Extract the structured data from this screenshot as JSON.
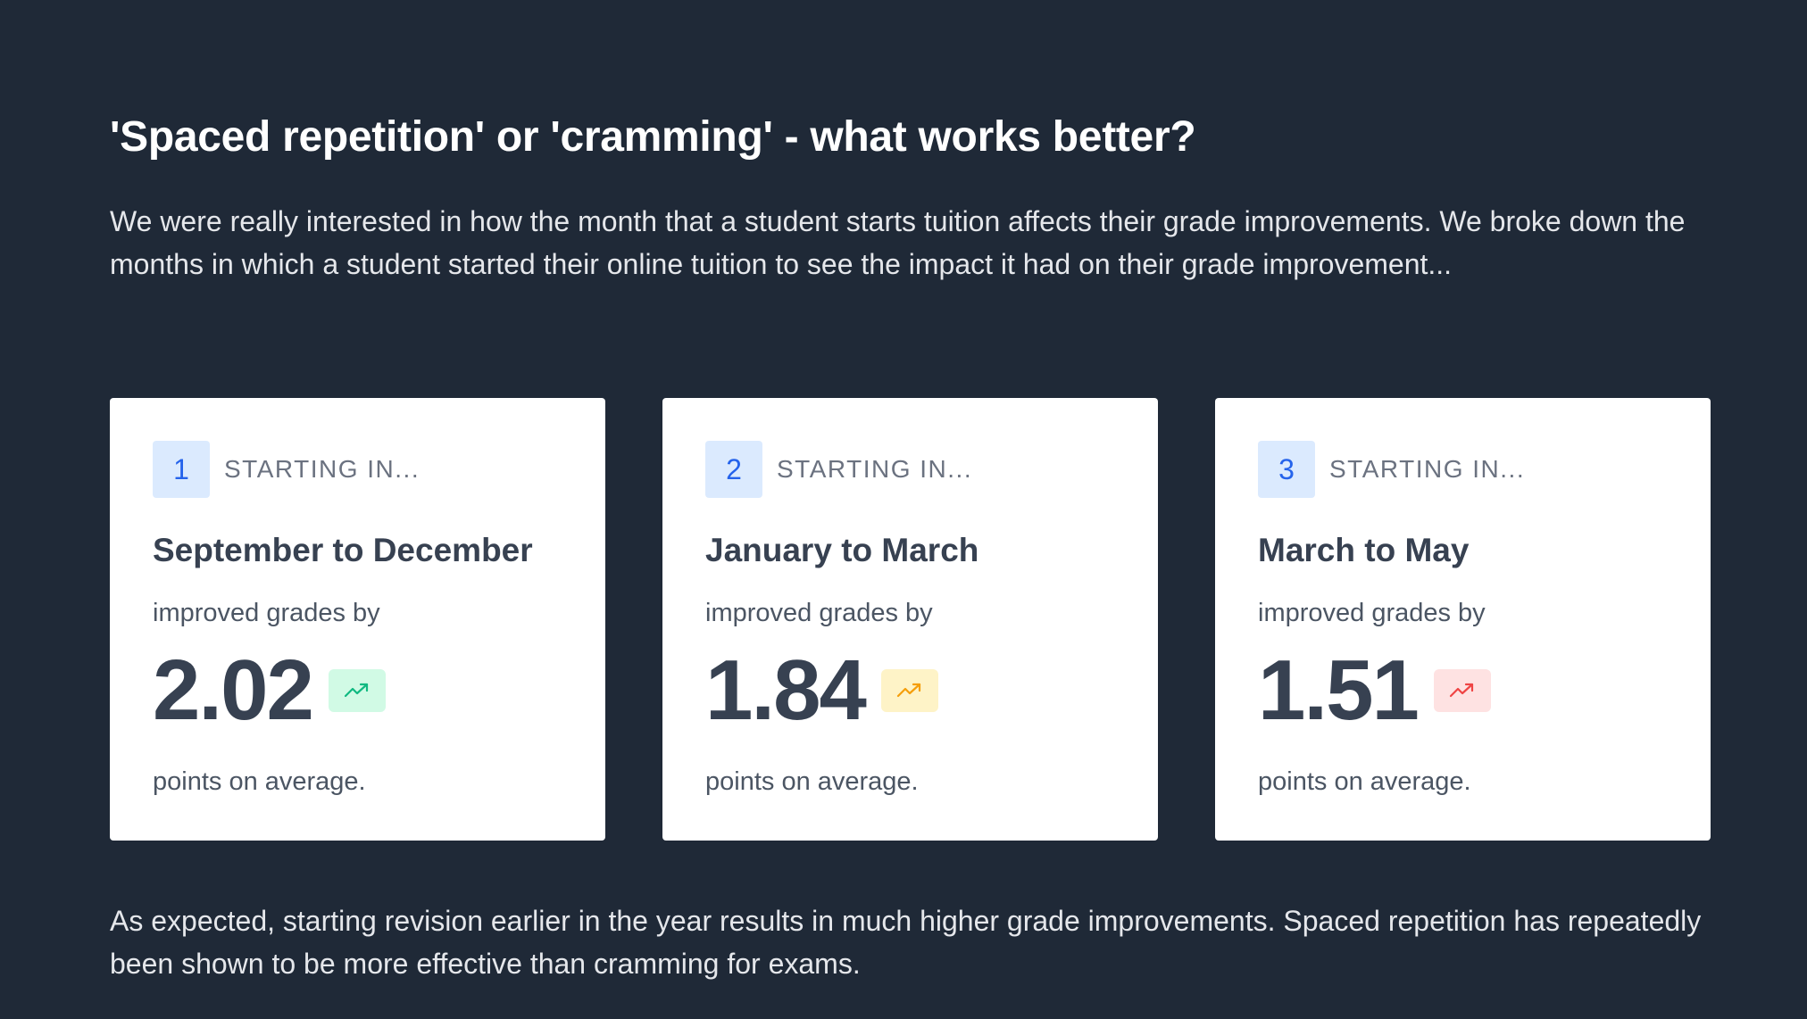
{
  "heading": "'Spaced repetition' or 'cramming' - what works better?",
  "intro": "We were really interested in how the month that a student starts tuition affects their grade improvements. We broke down the months in which a student started their online tuition to see the impact it had on their grade improvement...",
  "cards": [
    {
      "step": "1",
      "label": "STARTING IN...",
      "title": "September to December",
      "prefix": "improved grades by",
      "value": "2.02",
      "suffix": "points on average.",
      "trend_icon": "trend-up-icon",
      "trend_color": "#10b981",
      "trend_bg": "#d1fae5"
    },
    {
      "step": "2",
      "label": "STARTING IN...",
      "title": "January to March",
      "prefix": "improved grades by",
      "value": "1.84",
      "suffix": "points on average.",
      "trend_icon": "trend-up-icon",
      "trend_color": "#f59e0b",
      "trend_bg": "#fef3c7"
    },
    {
      "step": "3",
      "label": "STARTING IN...",
      "title": "March to May",
      "prefix": "improved grades by",
      "value": "1.51",
      "suffix": "points on average.",
      "trend_icon": "trend-up-icon",
      "trend_color": "#ef4444",
      "trend_bg": "#fee2e2"
    }
  ],
  "outro": "As expected, starting revision earlier in the year results in much higher grade improvements. Spaced repetition has repeatedly been shown to be more effective than cramming for exams.",
  "colors": {
    "background": "#1f2937",
    "card": "#ffffff",
    "badge_bg": "#dbeafe",
    "badge_text": "#2563eb"
  }
}
